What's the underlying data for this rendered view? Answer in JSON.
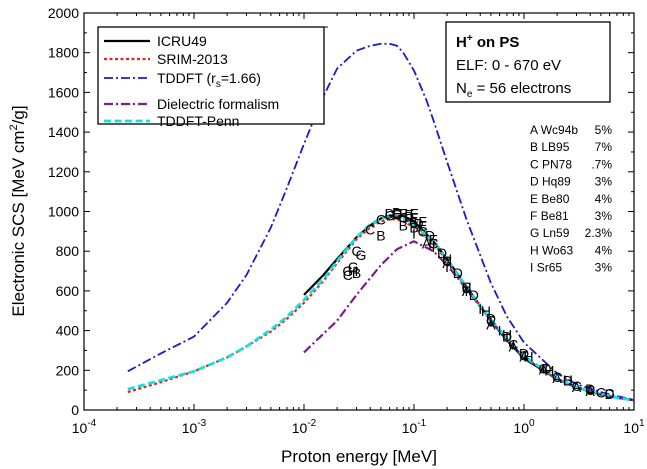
{
  "chart_data": {
    "type": "line",
    "xlabel": "Proton energy [MeV]",
    "ylabel": "Electronic SCS [MeV cm²/g]",
    "xscale": "log",
    "xlim": [
      0.0001,
      10
    ],
    "ylim": [
      0,
      2000
    ],
    "x_ticks": [
      {
        "value": 0.0001,
        "base": "10",
        "exp": "-4"
      },
      {
        "value": 0.001,
        "base": "10",
        "exp": "-3"
      },
      {
        "value": 0.01,
        "base": "10",
        "exp": "-2"
      },
      {
        "value": 0.1,
        "base": "10",
        "exp": "-1"
      },
      {
        "value": 1,
        "base": "10",
        "exp": "0"
      },
      {
        "value": 10,
        "base": "10",
        "exp": "1"
      }
    ],
    "y_ticks": [
      0,
      200,
      400,
      600,
      800,
      1000,
      1200,
      1400,
      1600,
      1800,
      2000
    ],
    "grid": false,
    "legend_position": "top-left",
    "series": [
      {
        "name": "ICRU49",
        "color": "#000000",
        "dash": "solid",
        "width": 2.2,
        "x": [
          0.01,
          0.015,
          0.02,
          0.03,
          0.04,
          0.05,
          0.06,
          0.08,
          0.1,
          0.15,
          0.2,
          0.3,
          0.5,
          0.7,
          1,
          2,
          3,
          5,
          7,
          10
        ],
        "y": [
          580,
          680,
          760,
          870,
          930,
          965,
          980,
          978,
          950,
          850,
          760,
          620,
          450,
          350,
          260,
          155,
          115,
          78,
          62,
          50
        ]
      },
      {
        "name": "SRIM-2013",
        "color": "#e8221a",
        "dash": "3,2.5",
        "width": 2.2,
        "x": [
          0.00025,
          0.0005,
          0.001,
          0.002,
          0.003,
          0.005,
          0.007,
          0.01,
          0.015,
          0.02,
          0.03,
          0.04,
          0.05,
          0.06,
          0.07,
          0.08,
          0.1,
          0.15,
          0.2,
          0.3,
          0.5,
          0.7,
          1,
          2,
          3,
          5,
          7,
          10
        ],
        "y": [
          90,
          140,
          195,
          265,
          320,
          395,
          460,
          540,
          650,
          740,
          860,
          920,
          950,
          962,
          960,
          950,
          920,
          840,
          750,
          615,
          450,
          355,
          265,
          155,
          112,
          76,
          60,
          48
        ]
      },
      {
        "name": "TDDFT (rs=1.66)",
        "label_main": "TDDFT (r",
        "label_sub": "s",
        "label_tail": "=1.66)",
        "color": "#1a1acc",
        "dash": "9,3,2,3",
        "width": 1.8,
        "x": [
          0.00025,
          0.0005,
          0.001,
          0.002,
          0.003,
          0.005,
          0.007,
          0.01,
          0.015,
          0.02,
          0.03,
          0.04,
          0.05,
          0.06,
          0.07,
          0.08,
          0.1,
          0.13,
          0.15,
          0.2,
          0.3,
          0.5,
          0.7,
          1,
          2,
          3,
          5,
          7,
          10
        ],
        "y": [
          195,
          285,
          370,
          540,
          680,
          920,
          1120,
          1340,
          1580,
          1720,
          1810,
          1835,
          1845,
          1845,
          1835,
          1800,
          1710,
          1560,
          1460,
          1250,
          960,
          640,
          470,
          340,
          185,
          130,
          90,
          70,
          52
        ]
      },
      {
        "name": "Dielectric formalism",
        "color": "#7a1f87",
        "dash": "9,3,2,3",
        "width": 2.2,
        "x": [
          0.01,
          0.02,
          0.03,
          0.05,
          0.07,
          0.1,
          0.15,
          0.2,
          0.3,
          0.5,
          0.7,
          1,
          2,
          3,
          5,
          7,
          10
        ],
        "y": [
          290,
          450,
          580,
          730,
          810,
          850,
          800,
          730,
          610,
          450,
          355,
          265,
          155,
          112,
          78,
          62,
          50
        ]
      },
      {
        "name": "TDDFT-Penn",
        "color": "#14e0e0",
        "dash": "7,3.5",
        "width": 2.8,
        "x": [
          0.00025,
          0.0005,
          0.001,
          0.002,
          0.003,
          0.005,
          0.007,
          0.01,
          0.015,
          0.02,
          0.03,
          0.04,
          0.05,
          0.06,
          0.07,
          0.08,
          0.1,
          0.15,
          0.2,
          0.3,
          0.5,
          0.7,
          1,
          2,
          3,
          5,
          7,
          10
        ],
        "y": [
          105,
          150,
          195,
          265,
          320,
          405,
          470,
          555,
          660,
          750,
          870,
          935,
          965,
          975,
          975,
          965,
          935,
          850,
          760,
          620,
          455,
          360,
          270,
          160,
          115,
          80,
          62,
          50
        ]
      }
    ],
    "experimental_data": [
      {
        "code": "A",
        "ref": "Wc94b",
        "err": "5%",
        "points": [
          [
            0.13,
            840
          ],
          [
            0.2,
            740
          ],
          [
            0.3,
            600
          ],
          [
            0.5,
            430
          ],
          [
            0.8,
            320
          ],
          [
            1.0,
            270
          ],
          [
            1.5,
            205
          ],
          [
            2,
            160
          ],
          [
            3,
            115
          ],
          [
            4,
            95
          ]
        ]
      },
      {
        "code": "B",
        "ref": "LB95",
        "err": "7%",
        "points": [
          [
            0.03,
            690
          ],
          [
            0.05,
            880
          ],
          [
            0.08,
            930
          ],
          [
            0.1,
            920
          ]
        ]
      },
      {
        "code": "C",
        "ref": "PN78",
        "err": ".7%",
        "points": [
          [
            0.025,
            680
          ],
          [
            0.03,
            800
          ],
          [
            0.04,
            910
          ],
          [
            0.05,
            960
          ],
          [
            0.06,
            980
          ],
          [
            0.07,
            985
          ],
          [
            0.08,
            970
          ],
          [
            0.1,
            945
          ],
          [
            0.12,
            900
          ],
          [
            0.15,
            840
          ],
          [
            0.2,
            750
          ],
          [
            0.3,
            620
          ],
          [
            0.5,
            450
          ],
          [
            0.8,
            330
          ],
          [
            1,
            275
          ],
          [
            1.5,
            210
          ],
          [
            2,
            165
          ],
          [
            3,
            120
          ],
          [
            4,
            100
          ],
          [
            5,
            88
          ],
          [
            6,
            82
          ]
        ]
      },
      {
        "code": "D",
        "ref": "Hq89",
        "err": "3%",
        "points": [
          [
            0.06,
            990
          ],
          [
            0.07,
            995
          ],
          [
            0.09,
            975
          ],
          [
            0.11,
            940
          ],
          [
            0.14,
            880
          ],
          [
            0.18,
            790
          ],
          [
            0.25,
            690
          ],
          [
            0.35,
            580
          ],
          [
            0.5,
            460
          ],
          [
            0.7,
            370
          ],
          [
            1,
            285
          ],
          [
            1.6,
            210
          ],
          [
            2.5,
            148
          ],
          [
            4,
            105
          ],
          [
            6,
            80
          ]
        ]
      },
      {
        "code": "E",
        "ref": "Be80",
        "err": "4%",
        "points": [
          [
            0.07,
            990
          ],
          [
            0.09,
            985
          ],
          [
            0.1,
            970
          ],
          [
            0.12,
            930
          ],
          [
            0.15,
            860
          ]
        ]
      },
      {
        "code": "F",
        "ref": "Be81",
        "err": "3%",
        "points": [
          [
            0.08,
            990
          ],
          [
            0.1,
            990
          ],
          [
            0.12,
            950
          ]
        ]
      },
      {
        "code": "G",
        "ref": "Ln59",
        "err": "2.3%",
        "points": [
          [
            0.025,
            700
          ],
          [
            0.028,
            720
          ],
          [
            0.033,
            780
          ]
        ]
      },
      {
        "code": "H",
        "ref": "Wo63",
        "err": "4%",
        "points": [
          [
            0.028,
            700
          ],
          [
            0.2,
            760
          ],
          [
            0.3,
            620
          ],
          [
            0.45,
            500
          ],
          [
            0.7,
            380
          ],
          [
            1.1,
            270
          ],
          [
            1.7,
            200
          ],
          [
            2.5,
            150
          ]
        ]
      },
      {
        "code": "I",
        "ref": "Sr65",
        "err": "3%",
        "points": [
          [
            0.1,
            890
          ],
          [
            0.15,
            820
          ],
          [
            0.2,
            720
          ],
          [
            0.3,
            600
          ],
          [
            0.4,
            510
          ],
          [
            0.5,
            450
          ],
          [
            0.6,
            400
          ],
          [
            0.7,
            370
          ],
          [
            0.8,
            330
          ]
        ]
      }
    ],
    "info_box": {
      "title_main": "H",
      "title_sup": "+",
      "title_tail": " on PS",
      "elf": "ELF: 0 - 670 eV",
      "ne_main": "N",
      "ne_sub": "e",
      "ne_tail": " = 56 electrons"
    }
  }
}
